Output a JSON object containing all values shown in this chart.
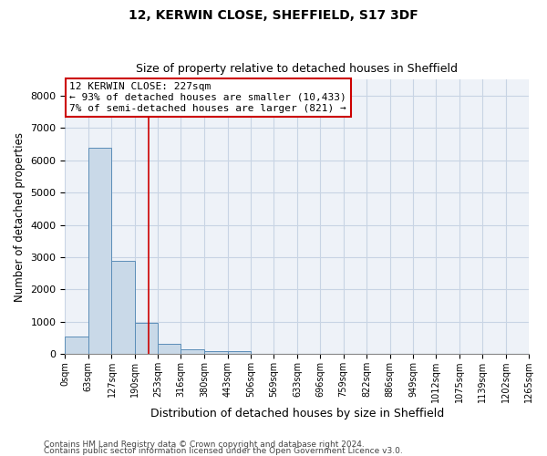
{
  "title": "12, KERWIN CLOSE, SHEFFIELD, S17 3DF",
  "subtitle": "Size of property relative to detached houses in Sheffield",
  "xlabel": "Distribution of detached houses by size in Sheffield",
  "ylabel": "Number of detached properties",
  "footnote1": "Contains HM Land Registry data © Crown copyright and database right 2024.",
  "footnote2": "Contains public sector information licensed under the Open Government Licence v3.0.",
  "bar_values": [
    550,
    6400,
    2900,
    980,
    330,
    150,
    100,
    80,
    0,
    0,
    0,
    0,
    0,
    0,
    0,
    0,
    0,
    0,
    0,
    0
  ],
  "bin_edges": [
    0,
    63,
    127,
    190,
    253,
    316,
    380,
    443,
    506,
    569,
    633,
    696,
    759,
    822,
    886,
    949,
    1012,
    1075,
    1139,
    1202,
    1265
  ],
  "bar_color": "#c9d9e8",
  "bar_edge_color": "#5b8db8",
  "grid_color": "#c8d4e4",
  "background_color": "#eef2f8",
  "property_size": 227,
  "vline_color": "#cc0000",
  "annotation_line1": "12 KERWIN CLOSE: 227sqm",
  "annotation_line2": "← 93% of detached houses are smaller (10,433)",
  "annotation_line3": "7% of semi-detached houses are larger (821) →",
  "annotation_box_color": "#cc0000",
  "ylim": [
    0,
    8500
  ],
  "yticks": [
    0,
    1000,
    2000,
    3000,
    4000,
    5000,
    6000,
    7000,
    8000
  ],
  "title_fontsize": 10,
  "subtitle_fontsize": 9,
  "ylabel_fontsize": 8.5,
  "xlabel_fontsize": 9,
  "tick_fontsize": 7,
  "annotation_fontsize": 8,
  "footnote_fontsize": 6.5
}
